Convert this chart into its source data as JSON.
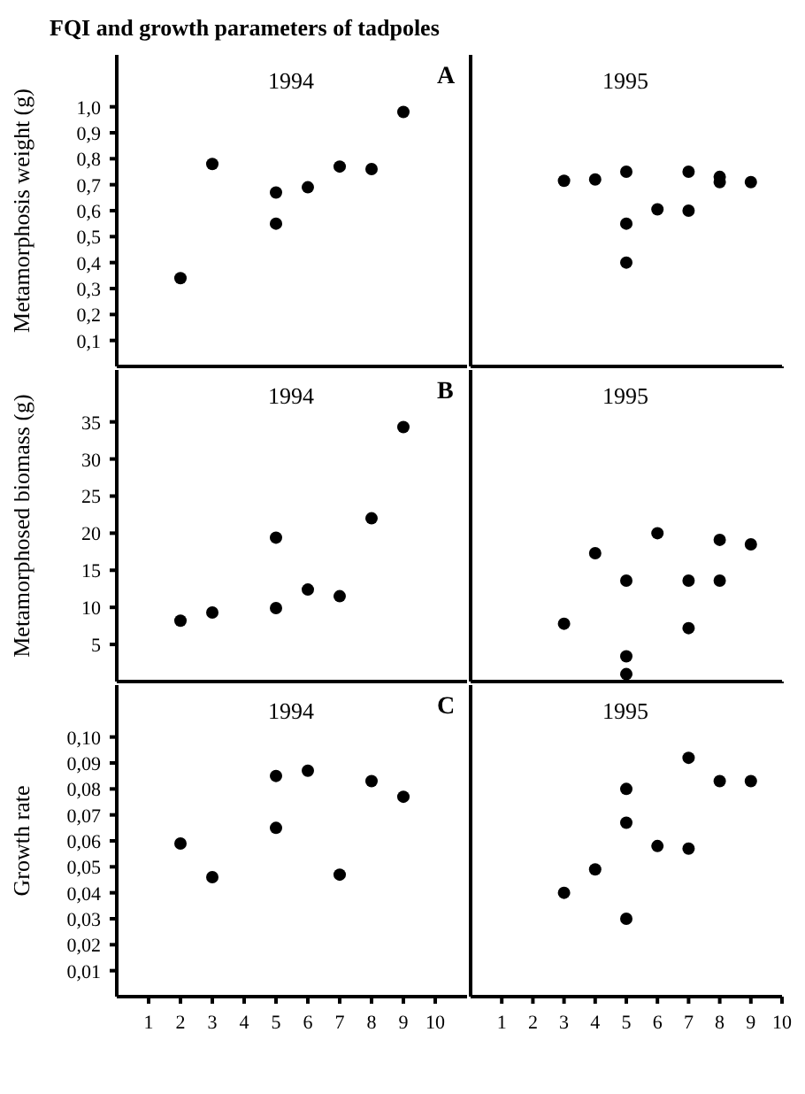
{
  "chart_data": [
    {
      "type": "scatter",
      "title": "1994",
      "annotations": [
        "FQI and growth parameters of tadpoles",
        "A"
      ],
      "ylabel": "Metamorphosis weight (g)",
      "xlim": [
        0,
        11
      ],
      "xticks": [
        1,
        2,
        3,
        4,
        5,
        6,
        7,
        8,
        9,
        10
      ],
      "ylim": [
        0,
        1.2
      ],
      "yticks": [
        {
          "value": 0.1,
          "label": "0,1"
        },
        {
          "value": 0.2,
          "label": "0,2"
        },
        {
          "value": 0.3,
          "label": "0,3"
        },
        {
          "value": 0.4,
          "label": "0,4"
        },
        {
          "value": 0.5,
          "label": "0,5"
        },
        {
          "value": 0.6,
          "label": "0,6"
        },
        {
          "value": 0.7,
          "label": "0,7"
        },
        {
          "value": 0.8,
          "label": "0,8"
        },
        {
          "value": 0.9,
          "label": "0,9"
        },
        {
          "value": 1.0,
          "label": "1,0"
        }
      ],
      "tick_labels": "y",
      "marker": "circle",
      "series": [
        {
          "color": "#000000",
          "x": [
            2,
            3,
            5,
            5,
            6,
            7,
            8,
            9
          ],
          "values": [
            0.34,
            0.78,
            0.67,
            0.55,
            0.69,
            0.77,
            0.76,
            0.98
          ]
        }
      ]
    },
    {
      "type": "scatter",
      "title": "1995",
      "xlim": [
        0,
        10
      ],
      "xticks": [
        1,
        2,
        3,
        4,
        5,
        6,
        7,
        8,
        9,
        10
      ],
      "ylim": [
        0,
        1.2
      ],
      "yticks": [
        {
          "value": 0.1,
          "label": null
        },
        {
          "value": 0.2,
          "label": null
        },
        {
          "value": 0.3,
          "label": null
        },
        {
          "value": 0.4,
          "label": null
        },
        {
          "value": 0.5,
          "label": null
        },
        {
          "value": 0.6,
          "label": null
        },
        {
          "value": 0.7,
          "label": null
        },
        {
          "value": 0.8,
          "label": null
        },
        {
          "value": 0.9,
          "label": null
        },
        {
          "value": 1.0,
          "label": null
        }
      ],
      "tick_labels": false,
      "marker": "circle",
      "series": [
        {
          "color": "#000000",
          "x": [
            3,
            4,
            5,
            5,
            5,
            6,
            7,
            7,
            8,
            8,
            9
          ],
          "values": [
            0.715,
            0.72,
            0.75,
            0.55,
            0.4,
            0.605,
            0.75,
            0.6,
            0.73,
            0.71,
            0.71
          ]
        }
      ]
    },
    {
      "type": "scatter",
      "title": "1994",
      "annotations": [
        "B"
      ],
      "ylabel": "Metamorphosed biomass (g)",
      "xlim": [
        0,
        11
      ],
      "xticks": [
        1,
        2,
        3,
        4,
        5,
        6,
        7,
        8,
        9,
        10
      ],
      "ylim": [
        0,
        42
      ],
      "yticks": [
        5,
        10,
        15,
        20,
        25,
        30,
        35
      ],
      "tick_labels": "y",
      "marker": "circle",
      "series": [
        {
          "color": "#000000",
          "x": [
            2,
            3,
            5,
            5,
            6,
            7,
            8,
            9
          ],
          "values": [
            8.2,
            9.3,
            19.4,
            9.9,
            12.4,
            11.5,
            22,
            34.3
          ]
        }
      ]
    },
    {
      "type": "scatter",
      "title": "1995",
      "xlim": [
        0,
        10
      ],
      "xticks": [
        1,
        2,
        3,
        4,
        5,
        6,
        7,
        8,
        9,
        10
      ],
      "ylim": [
        0,
        42
      ],
      "yticks": [
        {
          "value": 5,
          "label": null
        },
        {
          "value": 10,
          "label": null
        },
        {
          "value": 15,
          "label": null
        },
        {
          "value": 20,
          "label": null
        },
        {
          "value": 25,
          "label": null
        },
        {
          "value": 30,
          "label": null
        },
        {
          "value": 35,
          "label": null
        }
      ],
      "tick_labels": false,
      "marker": "circle",
      "series": [
        {
          "color": "#000000",
          "x": [
            3,
            4,
            5,
            5,
            5,
            6,
            7,
            7,
            8,
            8,
            9
          ],
          "values": [
            7.8,
            17.3,
            13.6,
            3.4,
            1.0,
            20,
            13.6,
            7.2,
            19.1,
            13.6,
            18.5
          ]
        }
      ]
    },
    {
      "type": "scatter",
      "title": "1994",
      "annotations": [
        "C"
      ],
      "ylabel": "Growth rate",
      "xlim": [
        0,
        11
      ],
      "xticks": [
        1,
        2,
        3,
        4,
        5,
        6,
        7,
        8,
        9,
        10
      ],
      "ylim": [
        0,
        0.12
      ],
      "yticks": [
        {
          "value": 0.01,
          "label": "0,01"
        },
        {
          "value": 0.02,
          "label": "0,02"
        },
        {
          "value": 0.03,
          "label": "0,03"
        },
        {
          "value": 0.04,
          "label": "0,04"
        },
        {
          "value": 0.05,
          "label": "0,05"
        },
        {
          "value": 0.06,
          "label": "0,06"
        },
        {
          "value": 0.07,
          "label": "0,07"
        },
        {
          "value": 0.08,
          "label": "0,08"
        },
        {
          "value": 0.09,
          "label": "0,09"
        },
        {
          "value": 0.1,
          "label": "0,10"
        }
      ],
      "marker": "circle",
      "series": [
        {
          "color": "#000000",
          "x": [
            2,
            3,
            5,
            5,
            6,
            7,
            8,
            9
          ],
          "values": [
            0.059,
            0.046,
            0.085,
            0.065,
            0.087,
            0.047,
            0.083,
            0.077
          ]
        }
      ]
    },
    {
      "type": "scatter",
      "title": "1995",
      "xlim": [
        0,
        10
      ],
      "xticks": [
        1,
        2,
        3,
        4,
        5,
        6,
        7,
        8,
        9,
        10
      ],
      "ylim": [
        0,
        0.12
      ],
      "yticks": [
        {
          "value": 0.01,
          "label": null
        },
        {
          "value": 0.02,
          "label": null
        },
        {
          "value": 0.03,
          "label": null
        },
        {
          "value": 0.04,
          "label": null
        },
        {
          "value": 0.05,
          "label": null
        },
        {
          "value": 0.06,
          "label": null
        },
        {
          "value": 0.07,
          "label": null
        },
        {
          "value": 0.08,
          "label": null
        },
        {
          "value": 0.09,
          "label": null
        },
        {
          "value": 0.1,
          "label": null
        }
      ],
      "tick_labels": "x",
      "marker": "circle",
      "series": [
        {
          "color": "#000000",
          "x": [
            3,
            4,
            5,
            5,
            5,
            6,
            7,
            7,
            8,
            9
          ],
          "values": [
            0.04,
            0.049,
            0.08,
            0.067,
            0.03,
            0.058,
            0.092,
            0.057,
            0.083,
            0.083
          ]
        }
      ]
    }
  ]
}
